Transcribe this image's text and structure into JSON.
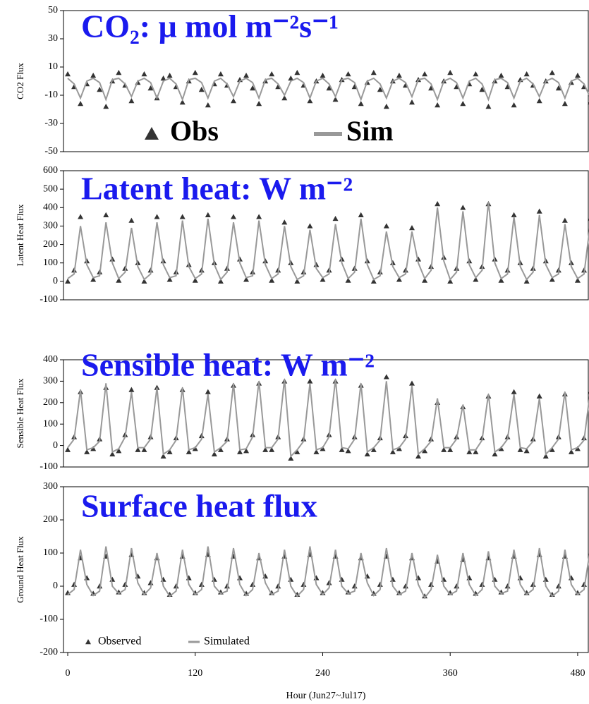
{
  "chart_data": [
    {
      "type": "line",
      "title": "CO₂: μ mol m⁻²s⁻¹",
      "y_label": "CO2  Flux",
      "legend": "lower center",
      "xlim": [
        -4,
        490
      ],
      "ylim": [
        -50,
        50
      ],
      "yticks": [
        -50,
        -30,
        -10,
        10,
        30,
        50
      ],
      "x": [
        0,
        6,
        12,
        18,
        24,
        30,
        36,
        42,
        48,
        54,
        60,
        66,
        72,
        78,
        84,
        90,
        96,
        102,
        108,
        114,
        120,
        126,
        132,
        138,
        144,
        150,
        156,
        162,
        168,
        174,
        180,
        186,
        192,
        198,
        204,
        210,
        216,
        222,
        228,
        234,
        240,
        246,
        252,
        258,
        264,
        270,
        276,
        282,
        288,
        294,
        300,
        306,
        312,
        318,
        324,
        330,
        336,
        342,
        348,
        354,
        360,
        366,
        372,
        378,
        384,
        390,
        396,
        402,
        408,
        414,
        420,
        426,
        432,
        438,
        444,
        450,
        456,
        462,
        468,
        474,
        480,
        486,
        492
      ],
      "series": [
        {
          "name": "Obs",
          "color": "#333333",
          "marker": "triangle",
          "values": [
            5,
            -4,
            -16,
            -2,
            4,
            -6,
            -18,
            0,
            6,
            -3,
            -14,
            -1,
            5,
            -5,
            -12,
            2,
            4,
            -4,
            -15,
            0,
            6,
            -6,
            -17,
            -2,
            5,
            -3,
            -14,
            1,
            4,
            -5,
            -16,
            0,
            5,
            -4,
            -12,
            2,
            6,
            -3,
            -14,
            0,
            4,
            -5,
            -13,
            1,
            5,
            -4,
            -16,
            -1,
            6,
            -6,
            -18,
            0,
            4,
            -3,
            -15,
            1,
            5,
            -5,
            -17,
            0,
            6,
            -4,
            -16,
            -2,
            5,
            -6,
            -18,
            0,
            4,
            -4,
            -17,
            1,
            5,
            -3,
            -14,
            0,
            6,
            -5,
            -16,
            -1,
            4,
            -4,
            -15
          ]
        },
        {
          "name": "Sim",
          "color": "#999999",
          "marker": "line",
          "values": [
            2,
            -2,
            -12,
            0,
            2,
            -1,
            -13,
            1,
            2,
            -2,
            -11,
            0,
            2,
            -1,
            -12,
            0,
            2,
            -2,
            -13,
            1,
            2,
            -1,
            -12,
            0,
            2,
            -2,
            -11,
            0,
            2,
            -1,
            -12,
            1,
            2,
            -2,
            -10,
            0,
            2,
            -1,
            -12,
            0,
            2,
            -2,
            -11,
            1,
            2,
            -1,
            -13,
            0,
            2,
            -2,
            -12,
            0,
            2,
            -1,
            -11,
            1,
            2,
            -2,
            -13,
            0,
            2,
            -1,
            -12,
            0,
            2,
            -2,
            -13,
            1,
            2,
            -1,
            -12,
            0,
            2,
            -2,
            -11,
            0,
            2,
            -1,
            -12,
            0,
            2,
            -2,
            -12
          ]
        }
      ]
    },
    {
      "type": "line",
      "title": "Latent heat: W m⁻²",
      "y_label": "Latent Heat Flux",
      "xlim": [
        -4,
        490
      ],
      "ylim": [
        -100,
        600
      ],
      "yticks": [
        -100,
        0,
        100,
        200,
        300,
        400,
        500,
        600
      ],
      "x": [
        0,
        6,
        12,
        18,
        24,
        30,
        36,
        42,
        48,
        54,
        60,
        66,
        72,
        78,
        84,
        90,
        96,
        102,
        108,
        114,
        120,
        126,
        132,
        138,
        144,
        150,
        156,
        162,
        168,
        174,
        180,
        186,
        192,
        198,
        204,
        210,
        216,
        222,
        228,
        234,
        240,
        246,
        252,
        258,
        264,
        270,
        276,
        282,
        288,
        294,
        300,
        306,
        312,
        318,
        324,
        330,
        336,
        342,
        348,
        354,
        360,
        366,
        372,
        378,
        384,
        390,
        396,
        402,
        408,
        414,
        420,
        426,
        432,
        438,
        444,
        450,
        456,
        462,
        468,
        474,
        480,
        486,
        492
      ],
      "series": [
        {
          "color": "#333333",
          "marker": "triangle",
          "values": [
            0,
            60,
            350,
            110,
            10,
            50,
            360,
            120,
            5,
            70,
            330,
            100,
            0,
            60,
            350,
            110,
            10,
            50,
            350,
            90,
            5,
            60,
            360,
            100,
            0,
            70,
            350,
            120,
            10,
            50,
            350,
            110,
            5,
            60,
            320,
            100,
            0,
            50,
            300,
            90,
            10,
            60,
            340,
            120,
            5,
            70,
            360,
            110,
            0,
            50,
            300,
            100,
            10,
            60,
            290,
            120,
            5,
            80,
            420,
            130,
            0,
            70,
            400,
            110,
            10,
            80,
            420,
            120,
            5,
            60,
            360,
            100,
            0,
            70,
            380,
            110,
            10,
            60,
            330,
            100,
            5,
            60,
            340
          ]
        },
        {
          "color": "#999999",
          "marker": "line",
          "values": [
            15,
            40,
            300,
            90,
            20,
            30,
            320,
            100,
            15,
            50,
            290,
            80,
            10,
            40,
            320,
            90,
            20,
            30,
            330,
            80,
            15,
            40,
            340,
            90,
            10,
            50,
            320,
            100,
            20,
            30,
            330,
            90,
            15,
            40,
            300,
            80,
            10,
            30,
            280,
            70,
            20,
            40,
            310,
            100,
            15,
            50,
            340,
            90,
            10,
            30,
            270,
            80,
            20,
            40,
            270,
            100,
            15,
            60,
            400,
            110,
            10,
            50,
            380,
            90,
            20,
            60,
            430,
            100,
            15,
            40,
            350,
            80,
            10,
            50,
            360,
            90,
            20,
            40,
            310,
            80,
            15,
            40,
            320
          ]
        }
      ]
    },
    {
      "type": "line",
      "title": "Sensible heat: W m⁻²",
      "y_label": "Sensible Heat Flux",
      "xlim": [
        -4,
        490
      ],
      "ylim": [
        -100,
        400
      ],
      "yticks": [
        -100,
        0,
        100,
        200,
        300,
        400
      ],
      "x": [
        0,
        6,
        12,
        18,
        24,
        30,
        36,
        42,
        48,
        54,
        60,
        66,
        72,
        78,
        84,
        90,
        96,
        102,
        108,
        114,
        120,
        126,
        132,
        138,
        144,
        150,
        156,
        162,
        168,
        174,
        180,
        186,
        192,
        198,
        204,
        210,
        216,
        222,
        228,
        234,
        240,
        246,
        252,
        258,
        264,
        270,
        276,
        282,
        288,
        294,
        300,
        306,
        312,
        318,
        324,
        330,
        336,
        342,
        348,
        354,
        360,
        366,
        372,
        378,
        384,
        390,
        396,
        402,
        408,
        414,
        420,
        426,
        432,
        438,
        444,
        450,
        456,
        462,
        468,
        474,
        480,
        486,
        492
      ],
      "series": [
        {
          "color": "#333333",
          "marker": "triangle",
          "values": [
            -20,
            40,
            250,
            -30,
            -15,
            30,
            270,
            -40,
            -25,
            50,
            260,
            -20,
            -20,
            40,
            270,
            -50,
            -30,
            35,
            260,
            -30,
            -15,
            45,
            250,
            -40,
            -20,
            30,
            280,
            -30,
            -25,
            50,
            290,
            -20,
            -20,
            40,
            300,
            -60,
            -30,
            30,
            300,
            -30,
            -15,
            50,
            300,
            -20,
            -25,
            40,
            280,
            -40,
            -20,
            35,
            320,
            -30,
            -15,
            45,
            290,
            -50,
            -25,
            30,
            200,
            -20,
            -20,
            40,
            180,
            -30,
            -30,
            35,
            230,
            -40,
            -15,
            40,
            250,
            -20,
            -25,
            30,
            230,
            -50,
            -20,
            40,
            240,
            -30,
            -15,
            35,
            250
          ]
        },
        {
          "color": "#999999",
          "marker": "line",
          "values": [
            -10,
            30,
            260,
            -20,
            -10,
            20,
            290,
            -30,
            -15,
            40,
            250,
            -10,
            -10,
            30,
            270,
            -40,
            -20,
            25,
            270,
            -20,
            -10,
            30,
            240,
            -30,
            -10,
            20,
            290,
            -20,
            -15,
            40,
            300,
            -10,
            -10,
            30,
            310,
            -50,
            -20,
            20,
            290,
            -20,
            -10,
            40,
            310,
            -10,
            -15,
            30,
            290,
            -30,
            -10,
            25,
            300,
            -20,
            -10,
            30,
            280,
            -40,
            -15,
            20,
            220,
            -10,
            -10,
            30,
            190,
            -20,
            -20,
            25,
            240,
            -30,
            -10,
            30,
            240,
            -10,
            -15,
            20,
            220,
            -40,
            -10,
            30,
            250,
            -20,
            -10,
            25,
            260
          ]
        }
      ]
    },
    {
      "type": "line",
      "title": "Surface heat flux",
      "y_label": "Ground Heat Flux",
      "x_label": "Hour (Jun27~Jul17)",
      "legend": "lower left",
      "xlim": [
        -4,
        490
      ],
      "ylim": [
        -200,
        300
      ],
      "yticks": [
        -200,
        -100,
        0,
        100,
        200,
        300
      ],
      "xticks": [
        0,
        120,
        240,
        360,
        480
      ],
      "x": [
        0,
        6,
        12,
        18,
        24,
        30,
        36,
        42,
        48,
        54,
        60,
        66,
        72,
        78,
        84,
        90,
        96,
        102,
        108,
        114,
        120,
        126,
        132,
        138,
        144,
        150,
        156,
        162,
        168,
        174,
        180,
        186,
        192,
        198,
        204,
        210,
        216,
        222,
        228,
        234,
        240,
        246,
        252,
        258,
        264,
        270,
        276,
        282,
        288,
        294,
        300,
        306,
        312,
        318,
        324,
        330,
        336,
        342,
        348,
        354,
        360,
        366,
        372,
        378,
        384,
        390,
        396,
        402,
        408,
        414,
        420,
        426,
        432,
        438,
        444,
        450,
        456,
        462,
        468,
        474,
        480,
        486,
        492
      ],
      "series": [
        {
          "name": "Observed",
          "color": "#333333",
          "marker": "triangle",
          "values": [
            -20,
            5,
            85,
            25,
            -22,
            0,
            90,
            20,
            -18,
            5,
            95,
            30,
            -20,
            10,
            85,
            20,
            -25,
            0,
            90,
            25,
            -20,
            5,
            95,
            20,
            -18,
            0,
            90,
            25,
            -22,
            5,
            85,
            30,
            -20,
            0,
            90,
            20,
            -25,
            5,
            95,
            25,
            -20,
            10,
            90,
            20,
            -18,
            0,
            85,
            30,
            -22,
            5,
            90,
            20,
            -20,
            0,
            85,
            25,
            -30,
            5,
            75,
            20,
            -20,
            0,
            80,
            25,
            -22,
            5,
            85,
            20,
            -18,
            0,
            90,
            25,
            -20,
            5,
            95,
            20,
            -25,
            0,
            90,
            25,
            -20,
            5,
            95
          ]
        },
        {
          "name": "Simulated",
          "color": "#999999",
          "marker": "line",
          "values": [
            -25,
            -10,
            110,
            5,
            -28,
            -15,
            120,
            0,
            -22,
            -10,
            115,
            10,
            -25,
            -5,
            100,
            0,
            -30,
            -15,
            110,
            5,
            -25,
            -10,
            120,
            0,
            -22,
            -15,
            115,
            5,
            -28,
            -10,
            100,
            10,
            -25,
            -15,
            110,
            0,
            -30,
            -10,
            120,
            5,
            -25,
            -5,
            110,
            0,
            -22,
            -15,
            100,
            10,
            -28,
            -10,
            115,
            0,
            -25,
            -15,
            100,
            5,
            -35,
            -10,
            95,
            0,
            -25,
            -15,
            100,
            5,
            -28,
            -10,
            105,
            0,
            -22,
            -15,
            110,
            5,
            -25,
            -10,
            115,
            0,
            -30,
            -15,
            110,
            5,
            -25,
            -10,
            115
          ]
        }
      ]
    }
  ]
}
